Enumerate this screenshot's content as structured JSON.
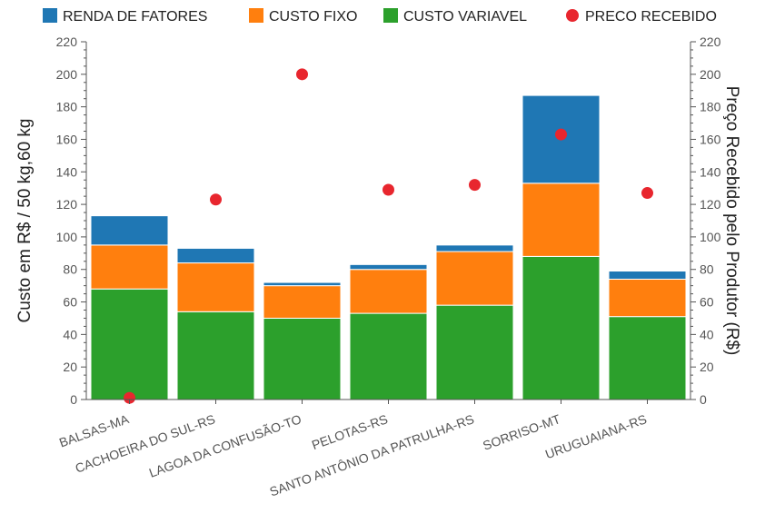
{
  "chart_data": {
    "type": "bar",
    "stacked": true,
    "categories": [
      "BALSAS-MA",
      "CACHOEIRA DO SUL-RS",
      "LAGOA DA CONFUSÃO-TO",
      "PELOTAS-RS",
      "SANTO ANTÔNIO DA PATRULHA-RS",
      "SORRISO-MT",
      "URUGUAIANA-RS"
    ],
    "series": [
      {
        "name": "CUSTO VARIAVEL",
        "color": "#2ca02c",
        "values": [
          68,
          54,
          50,
          53,
          58,
          88,
          51
        ]
      },
      {
        "name": "CUSTO FIXO",
        "color": "#ff7f0e",
        "values": [
          27,
          30,
          20,
          27,
          33,
          45,
          23
        ]
      },
      {
        "name": "RENDA DE FATORES",
        "color": "#1f77b4",
        "values": [
          18,
          9,
          2,
          3,
          4,
          54,
          5
        ]
      }
    ],
    "scatter_series": {
      "name": "PRECO RECEBIDO",
      "color": "#e8262e",
      "values": [
        1,
        123,
        200,
        129,
        132,
        163,
        127
      ]
    },
    "legend": [
      "RENDA DE FATORES",
      "CUSTO FIXO",
      "CUSTO VARIAVEL",
      "PRECO RECEBIDO"
    ],
    "legend_position": "top",
    "ylabel": "Custo em R$ / 50 kg,60 kg",
    "ylabel_right": "Preço Recebido pelo Produtor (R$)",
    "ylim": [
      0,
      220
    ],
    "ylim_right": [
      0,
      220
    ],
    "yticks": [
      0,
      20,
      40,
      60,
      80,
      100,
      120,
      140,
      160,
      180,
      200,
      220
    ],
    "grid": false
  }
}
